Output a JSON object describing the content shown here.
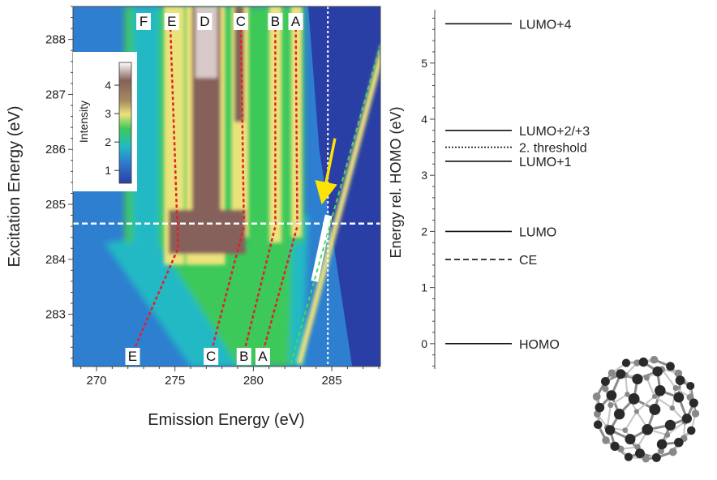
{
  "chart_data": [
    {
      "type": "heatmap",
      "xlabel": "Emission Energy (eV)",
      "ylabel": "Excitation Energy (eV)",
      "xlim": [
        268.5,
        288.1
      ],
      "ylim": [
        282.05,
        288.6
      ],
      "xticks": [
        "270",
        "275",
        "280",
        "285"
      ],
      "yticks": [
        "283",
        "284",
        "285",
        "286",
        "287",
        "288"
      ],
      "colorbar": {
        "label": "Intensity",
        "range": [
          0.55,
          4.8
        ],
        "ticks": [
          "1",
          "2",
          "3",
          "4"
        ]
      },
      "peak_labels_top": [
        {
          "label": "F",
          "x": 273.0
        },
        {
          "label": "E",
          "x": 274.8
        },
        {
          "label": "D",
          "x": 276.9
        },
        {
          "label": "C",
          "x": 279.2
        },
        {
          "label": "B",
          "x": 281.4
        },
        {
          "label": "A",
          "x": 282.7
        }
      ],
      "peak_labels_bottom": [
        {
          "label": "E",
          "x": 272.3
        },
        {
          "label": "C",
          "x": 277.3
        },
        {
          "label": "B",
          "x": 279.4
        },
        {
          "label": "A",
          "x": 280.6
        }
      ],
      "dispersion_lines": [
        {
          "points": [
            [
              274.7,
              288.3
            ],
            [
              275.2,
              284.2
            ],
            [
              272.3,
              282.3
            ]
          ]
        },
        {
          "points": [
            [
              279.2,
              288.3
            ],
            [
              279.4,
              284.6
            ],
            [
              277.3,
              282.3
            ]
          ]
        },
        {
          "points": [
            [
              281.4,
              288.3
            ],
            [
              281.4,
              284.6
            ],
            [
              279.4,
              282.3
            ]
          ]
        },
        {
          "points": [
            [
              282.7,
              288.3
            ],
            [
              282.8,
              284.6
            ],
            [
              280.6,
              282.3
            ]
          ]
        }
      ],
      "elastic_line": {
        "points": [
          [
            282.4,
            282.1
          ],
          [
            288.1,
            287.9
          ]
        ]
      },
      "vertical_marker_x": 284.75,
      "horizontal_marker_y": 284.65
    },
    {
      "type": "energy-levels",
      "ylabel": "Energy rel. HOMO (eV)",
      "ylim": [
        -0.45,
        5.95
      ],
      "yticks": [
        "0",
        "1",
        "2",
        "3",
        "4",
        "5"
      ],
      "levels": [
        {
          "label": "LUMO+4",
          "value": 5.7,
          "style": "solid"
        },
        {
          "label": "LUMO+2/+3",
          "value": 3.8,
          "style": "solid"
        },
        {
          "label": "2. threshold",
          "value": 3.5,
          "style": "dotted"
        },
        {
          "label": "LUMO+1",
          "value": 3.25,
          "style": "solid"
        },
        {
          "label": "LUMO",
          "value": 2.0,
          "style": "solid"
        },
        {
          "label": "CE",
          "value": 1.5,
          "style": "dashed"
        },
        {
          "label": "HOMO",
          "value": 0.0,
          "style": "solid"
        }
      ]
    }
  ],
  "colors": {
    "map_low": "#2a3fa5",
    "map_mid_blue": "#2e7fd0",
    "map_cyan": "#21b9c4",
    "map_green": "#3cc85a",
    "map_yellow": "#ece27c",
    "map_brown": "#86615a",
    "map_top": "#ffffff",
    "dispersion_line": "#e3202b",
    "elastic_line": "#44dd55",
    "arrow": "#ffe300"
  }
}
